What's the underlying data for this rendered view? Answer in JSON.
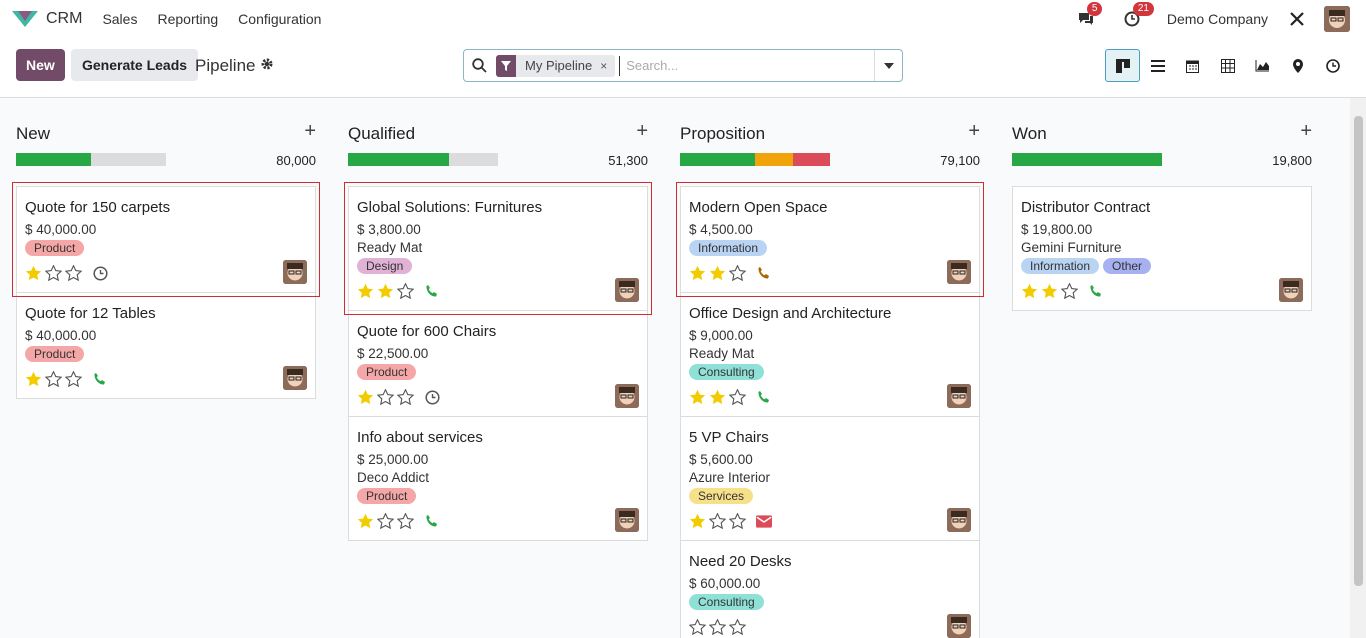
{
  "nav": {
    "app_name": "CRM",
    "menus": [
      "Sales",
      "Reporting",
      "Configuration"
    ],
    "messages_count": "5",
    "activities_count": "21",
    "company": "Demo Company"
  },
  "control": {
    "new_label": "New",
    "generate_label": "Generate Leads",
    "breadcrumb": "Pipeline",
    "facet_label": "My Pipeline",
    "facet_remove": "×",
    "search_placeholder": "Search..."
  },
  "colors": {
    "primary": "#714b67",
    "won": "#28a745",
    "warning": "#f0a30a",
    "danger": "#dc4c58",
    "planned": "#dcdcdc"
  },
  "columns": [
    {
      "title": "New",
      "add": "+",
      "total": "80,000",
      "progress": [
        {
          "color": "#28a745",
          "pct": 50
        }
      ],
      "cards": [
        {
          "name": "Quote for 150 carpets",
          "amount": "$ 40,000.00",
          "partner": "",
          "tags": [
            {
              "label": "Product",
              "color": "#f5a7a7"
            }
          ],
          "stars": 1,
          "activity": "clock",
          "hl": true
        },
        {
          "name": "Quote for 12 Tables",
          "amount": "$ 40,000.00",
          "partner": "",
          "tags": [
            {
              "label": "Product",
              "color": "#f5a7a7"
            }
          ],
          "stars": 1,
          "activity": "phone",
          "hl": false
        }
      ]
    },
    {
      "title": "Qualified",
      "add": "+",
      "total": "51,300",
      "progress": [
        {
          "color": "#28a745",
          "pct": 67
        }
      ],
      "cards": [
        {
          "name": "Global Solutions: Furnitures",
          "amount": "$ 3,800.00",
          "partner": "Ready Mat",
          "tags": [
            {
              "label": "Design",
              "color": "#e0b3d6"
            }
          ],
          "stars": 2,
          "activity": "phone",
          "hl": true
        },
        {
          "name": "Quote for 600 Chairs",
          "amount": "$ 22,500.00",
          "partner": "",
          "tags": [
            {
              "label": "Product",
              "color": "#f5a7a7"
            }
          ],
          "stars": 1,
          "activity": "clock",
          "hl": false
        },
        {
          "name": "Info about services",
          "amount": "$ 25,000.00",
          "partner": "Deco Addict",
          "tags": [
            {
              "label": "Product",
              "color": "#f5a7a7"
            }
          ],
          "stars": 1,
          "activity": "phone",
          "hl": false
        }
      ]
    },
    {
      "title": "Proposition",
      "add": "+",
      "total": "79,100",
      "progress": [
        {
          "color": "#28a745",
          "pct": 50
        },
        {
          "color": "#f0a30a",
          "pct": 25
        },
        {
          "color": "#dc4c58",
          "pct": 25
        }
      ],
      "cards": [
        {
          "name": "Modern Open Space",
          "amount": "$ 4,500.00",
          "partner": "",
          "tags": [
            {
              "label": "Information",
              "color": "#b9d3f3"
            }
          ],
          "stars": 2,
          "activity": "phone-warn",
          "hl": true
        },
        {
          "name": "Office Design and Architecture",
          "amount": "$ 9,000.00",
          "partner": "Ready Mat",
          "tags": [
            {
              "label": "Consulting",
              "color": "#8fe0d6"
            }
          ],
          "stars": 2,
          "activity": "phone",
          "hl": false
        },
        {
          "name": "5 VP Chairs",
          "amount": "$ 5,600.00",
          "partner": "Azure Interior",
          "tags": [
            {
              "label": "Services",
              "color": "#f7e08a"
            }
          ],
          "stars": 1,
          "activity": "mail",
          "hl": false
        },
        {
          "name": "Need 20 Desks",
          "amount": "$ 60,000.00",
          "partner": "",
          "tags": [
            {
              "label": "Consulting",
              "color": "#8fe0d6"
            }
          ],
          "stars": 0,
          "activity": "",
          "hl": false
        }
      ]
    },
    {
      "title": "Won",
      "add": "+",
      "total": "19,800",
      "progress": [
        {
          "color": "#28a745",
          "pct": 100
        }
      ],
      "cards": [
        {
          "name": "Distributor Contract",
          "amount": "$ 19,800.00",
          "partner": "Gemini Furniture",
          "tags": [
            {
              "label": "Information",
              "color": "#b9d3f3"
            },
            {
              "label": "Other",
              "color": "#a7b0f0"
            }
          ],
          "stars": 2,
          "activity": "phone",
          "hl": false
        }
      ]
    }
  ]
}
